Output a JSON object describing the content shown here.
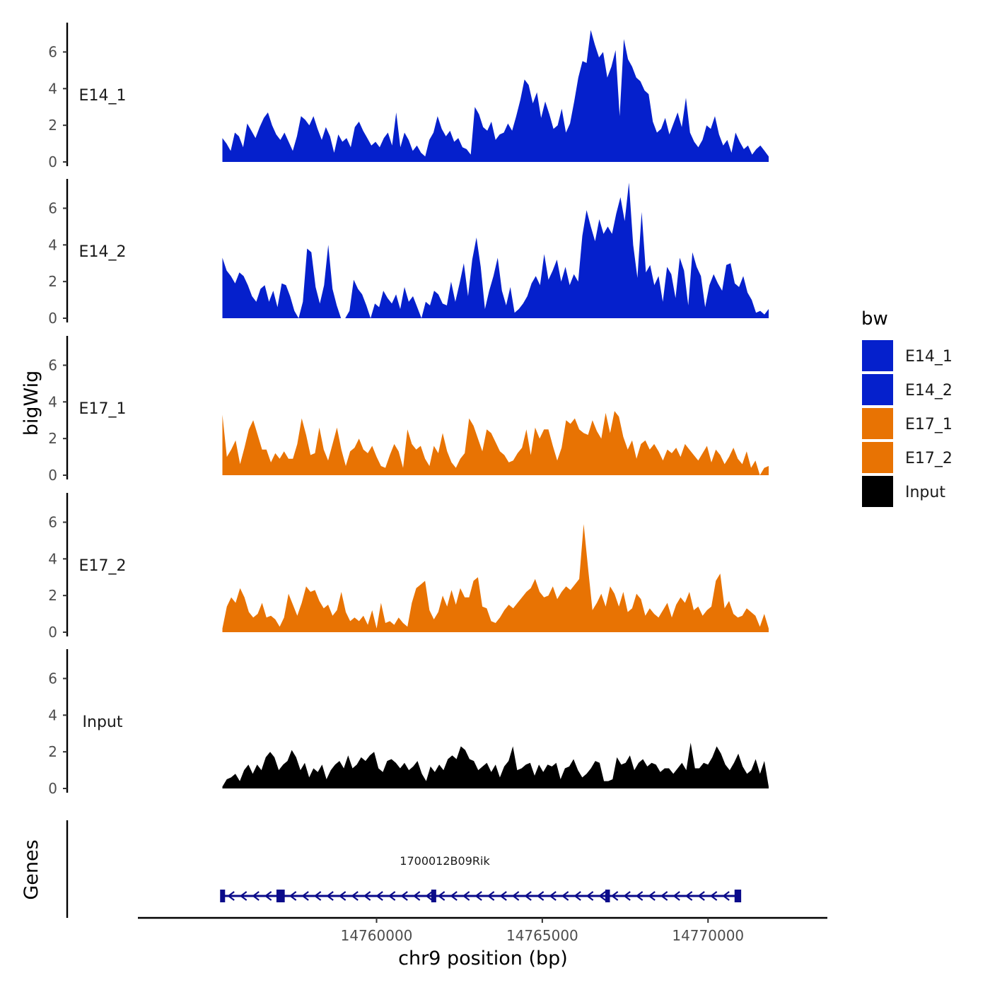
{
  "chart_data": {
    "type": "area",
    "title": "",
    "ylabel": "bigWig",
    "xlabel": "chr9 position (bp)",
    "gene_track_label": "Genes",
    "xlim": [
      14752800,
      14773600
    ],
    "ylim": [
      0,
      7.6
    ],
    "x_ticks": [
      14760000,
      14765000,
      14770000
    ],
    "x_tick_labels": [
      "14760000",
      "14765000",
      "14770000"
    ],
    "y_ticks": [
      0,
      2,
      4,
      6
    ],
    "y_tick_labels": [
      "0",
      "2",
      "4",
      "6"
    ],
    "legend": {
      "title": "bw",
      "items": [
        {
          "label": "E14_1",
          "color": "#0520cc"
        },
        {
          "label": "E14_2",
          "color": "#0520cc"
        },
        {
          "label": "E17_1",
          "color": "#e87303"
        },
        {
          "label": "E17_2",
          "color": "#e87303"
        },
        {
          "label": "Input",
          "color": "#000000"
        }
      ]
    },
    "x_start": 14755350,
    "x_end": 14771830,
    "series": [
      {
        "name": "E14_1",
        "color": "#0520cc",
        "values": [
          1.3,
          1.0,
          0.6,
          1.6,
          1.4,
          0.8,
          2.1,
          1.7,
          1.3,
          1.9,
          2.4,
          2.7,
          2.0,
          1.5,
          1.2,
          1.6,
          1.1,
          0.6,
          1.4,
          2.5,
          2.3,
          2.0,
          2.5,
          1.8,
          1.2,
          1.9,
          1.4,
          0.5,
          1.5,
          1.1,
          1.3,
          0.8,
          1.9,
          2.2,
          1.7,
          1.3,
          0.9,
          1.1,
          0.8,
          1.3,
          1.6,
          0.9,
          2.7,
          0.8,
          1.6,
          1.2,
          0.6,
          0.9,
          0.5,
          0.3,
          1.2,
          1.6,
          2.5,
          1.8,
          1.4,
          1.7,
          1.1,
          1.3,
          0.8,
          0.7,
          0.4,
          3.0,
          2.6,
          1.9,
          1.7,
          2.2,
          1.2,
          1.5,
          1.6,
          2.1,
          1.7,
          2.5,
          3.4,
          4.5,
          4.2,
          3.2,
          3.8,
          2.4,
          3.3,
          2.6,
          1.8,
          2.0,
          2.9,
          1.6,
          2.1,
          3.3,
          4.6,
          5.5,
          5.4,
          7.2,
          6.4,
          5.7,
          6.0,
          4.6,
          5.2,
          6.1,
          2.5,
          6.7,
          5.6,
          5.2,
          4.6,
          4.4,
          3.9,
          3.7,
          2.2,
          1.6,
          1.8,
          2.4,
          1.5,
          2.1,
          2.7,
          1.9,
          3.5,
          1.6,
          1.1,
          0.8,
          1.2,
          2.0,
          1.8,
          2.5,
          1.5,
          0.9,
          1.2,
          0.5,
          1.6,
          1.1,
          0.7,
          0.9,
          0.4,
          0.7,
          0.9,
          0.6,
          0.3
        ]
      },
      {
        "name": "E14_2",
        "color": "#0520cc",
        "values": [
          3.3,
          2.6,
          2.3,
          1.9,
          2.5,
          2.3,
          1.8,
          1.2,
          0.9,
          1.6,
          1.8,
          0.9,
          1.5,
          0.6,
          1.9,
          1.8,
          1.2,
          0.4,
          0.0,
          0.9,
          3.8,
          3.6,
          1.7,
          0.8,
          1.8,
          4.0,
          1.6,
          0.7,
          0.0,
          0.0,
          0.4,
          2.1,
          1.6,
          1.3,
          0.7,
          0.0,
          0.8,
          0.6,
          1.5,
          1.1,
          0.8,
          1.3,
          0.5,
          1.7,
          0.9,
          1.2,
          0.6,
          0.0,
          0.9,
          0.7,
          1.5,
          1.3,
          0.8,
          0.7,
          2.0,
          0.9,
          1.9,
          3.0,
          1.2,
          3.2,
          4.4,
          2.8,
          0.5,
          1.5,
          2.3,
          3.3,
          1.5,
          0.7,
          1.7,
          0.3,
          0.5,
          0.8,
          1.2,
          1.9,
          2.3,
          1.8,
          3.5,
          2.1,
          2.6,
          3.2,
          2.0,
          2.8,
          1.8,
          2.4,
          2.0,
          4.5,
          5.9,
          5.0,
          4.2,
          5.4,
          4.6,
          5.0,
          4.6,
          5.7,
          6.6,
          5.3,
          7.4,
          4.0,
          2.2,
          5.8,
          2.5,
          2.9,
          1.8,
          2.3,
          0.9,
          2.8,
          2.4,
          1.1,
          3.3,
          2.6,
          0.7,
          3.6,
          2.8,
          2.3,
          0.6,
          1.8,
          2.4,
          1.9,
          1.5,
          2.9,
          3.0,
          1.9,
          1.7,
          2.3,
          1.4,
          1.0,
          0.3,
          0.4,
          0.2,
          0.5
        ]
      },
      {
        "name": "E17_1",
        "color": "#e87303",
        "values": [
          3.3,
          1.0,
          1.4,
          1.9,
          0.6,
          1.5,
          2.5,
          3.0,
          2.2,
          1.4,
          1.4,
          0.7,
          1.2,
          0.9,
          1.3,
          0.9,
          0.9,
          1.7,
          3.1,
          2.2,
          1.1,
          1.2,
          2.6,
          1.4,
          0.8,
          1.7,
          2.6,
          1.4,
          0.5,
          1.3,
          1.5,
          2.0,
          1.4,
          1.2,
          1.6,
          1.0,
          0.5,
          0.4,
          1.1,
          1.7,
          1.3,
          0.4,
          2.5,
          1.7,
          1.4,
          1.6,
          0.9,
          0.5,
          1.6,
          1.2,
          2.3,
          1.3,
          0.7,
          0.4,
          0.9,
          1.2,
          3.1,
          2.7,
          2.0,
          1.3,
          2.5,
          2.3,
          1.8,
          1.3,
          1.1,
          0.7,
          0.8,
          1.2,
          1.5,
          2.5,
          1.1,
          2.6,
          2.0,
          2.5,
          2.5,
          1.6,
          0.8,
          1.5,
          3.0,
          2.8,
          3.1,
          2.5,
          2.3,
          2.2,
          3.0,
          2.4,
          2.0,
          3.4,
          2.3,
          3.5,
          3.2,
          2.1,
          1.4,
          1.9,
          0.9,
          1.7,
          1.9,
          1.4,
          1.7,
          1.3,
          0.8,
          1.4,
          1.2,
          1.5,
          1.0,
          1.7,
          1.4,
          1.1,
          0.8,
          1.2,
          1.6,
          0.7,
          1.4,
          1.1,
          0.6,
          1.0,
          1.5,
          0.9,
          0.6,
          1.3,
          0.4,
          0.8,
          0.0,
          0.4,
          0.5
        ]
      },
      {
        "name": "E17_2",
        "color": "#e87303",
        "values": [
          0.2,
          1.4,
          1.9,
          1.6,
          2.4,
          1.9,
          1.1,
          0.8,
          1.0,
          1.6,
          0.8,
          0.9,
          0.7,
          0.3,
          0.8,
          2.1,
          1.5,
          0.9,
          1.6,
          2.5,
          2.2,
          2.3,
          1.7,
          1.3,
          1.5,
          0.9,
          1.2,
          2.2,
          1.1,
          0.6,
          0.8,
          0.6,
          0.9,
          0.4,
          1.2,
          0.2,
          1.6,
          0.5,
          0.6,
          0.4,
          0.8,
          0.5,
          0.3,
          1.6,
          2.4,
          2.6,
          2.8,
          1.2,
          0.7,
          1.1,
          2.0,
          1.4,
          2.3,
          1.5,
          2.4,
          1.9,
          1.9,
          2.8,
          3.0,
          1.4,
          1.3,
          0.6,
          0.5,
          0.8,
          1.2,
          1.5,
          1.3,
          1.6,
          1.9,
          2.2,
          2.4,
          2.9,
          2.2,
          1.9,
          2.0,
          2.5,
          1.8,
          2.2,
          2.5,
          2.3,
          2.6,
          2.9,
          5.9,
          3.5,
          1.2,
          1.6,
          2.1,
          1.4,
          2.5,
          2.1,
          1.4,
          2.2,
          1.1,
          1.3,
          2.1,
          1.8,
          0.9,
          1.3,
          1.0,
          0.8,
          1.2,
          1.6,
          0.8,
          1.5,
          1.9,
          1.6,
          2.2,
          1.2,
          1.4,
          0.9,
          1.2,
          1.4,
          2.8,
          3.2,
          1.3,
          1.7,
          1.0,
          0.8,
          0.9,
          1.3,
          1.1,
          0.9,
          0.3,
          1.0,
          0.2
        ]
      },
      {
        "name": "Input",
        "color": "#000000",
        "values": [
          0.1,
          0.5,
          0.6,
          0.8,
          0.4,
          1.0,
          1.3,
          0.8,
          1.3,
          1.0,
          1.7,
          2.0,
          1.7,
          1.0,
          1.3,
          1.5,
          2.1,
          1.7,
          1.0,
          1.4,
          0.6,
          1.1,
          0.9,
          1.3,
          0.5,
          1.0,
          1.3,
          1.5,
          1.1,
          1.8,
          1.1,
          1.3,
          1.7,
          1.5,
          1.8,
          2.0,
          1.1,
          0.9,
          1.5,
          1.6,
          1.4,
          1.1,
          1.4,
          1.0,
          1.2,
          1.5,
          0.8,
          0.4,
          1.2,
          0.9,
          1.3,
          1.0,
          1.6,
          1.8,
          1.6,
          2.3,
          2.1,
          1.6,
          1.5,
          1.0,
          1.2,
          1.4,
          0.9,
          1.3,
          0.6,
          1.2,
          1.5,
          2.3,
          1.0,
          1.1,
          1.3,
          1.4,
          0.7,
          1.3,
          0.9,
          1.3,
          1.2,
          1.4,
          0.5,
          1.1,
          1.2,
          1.6,
          1.0,
          0.6,
          0.8,
          1.1,
          1.5,
          1.4,
          0.4,
          0.4,
          0.5,
          1.7,
          1.3,
          1.4,
          1.8,
          1.0,
          1.4,
          1.6,
          1.2,
          1.4,
          1.3,
          0.9,
          1.1,
          1.1,
          0.8,
          1.1,
          1.4,
          1.0,
          2.5,
          1.1,
          1.1,
          1.4,
          1.3,
          1.7,
          2.3,
          1.9,
          1.3,
          1.0,
          1.4,
          1.9,
          1.2,
          0.8,
          1.0,
          1.6,
          0.8,
          1.5,
          0.1
        ]
      }
    ],
    "genes": [
      {
        "name": "1700012B09Rik",
        "strand": "-",
        "start": 14755300,
        "end": 14770950,
        "exons": [
          [
            14755280,
            14755430
          ],
          [
            14756980,
            14757230
          ],
          [
            14761650,
            14761800
          ],
          [
            14766900,
            14767040
          ],
          [
            14770800,
            14771000
          ]
        ]
      }
    ]
  }
}
